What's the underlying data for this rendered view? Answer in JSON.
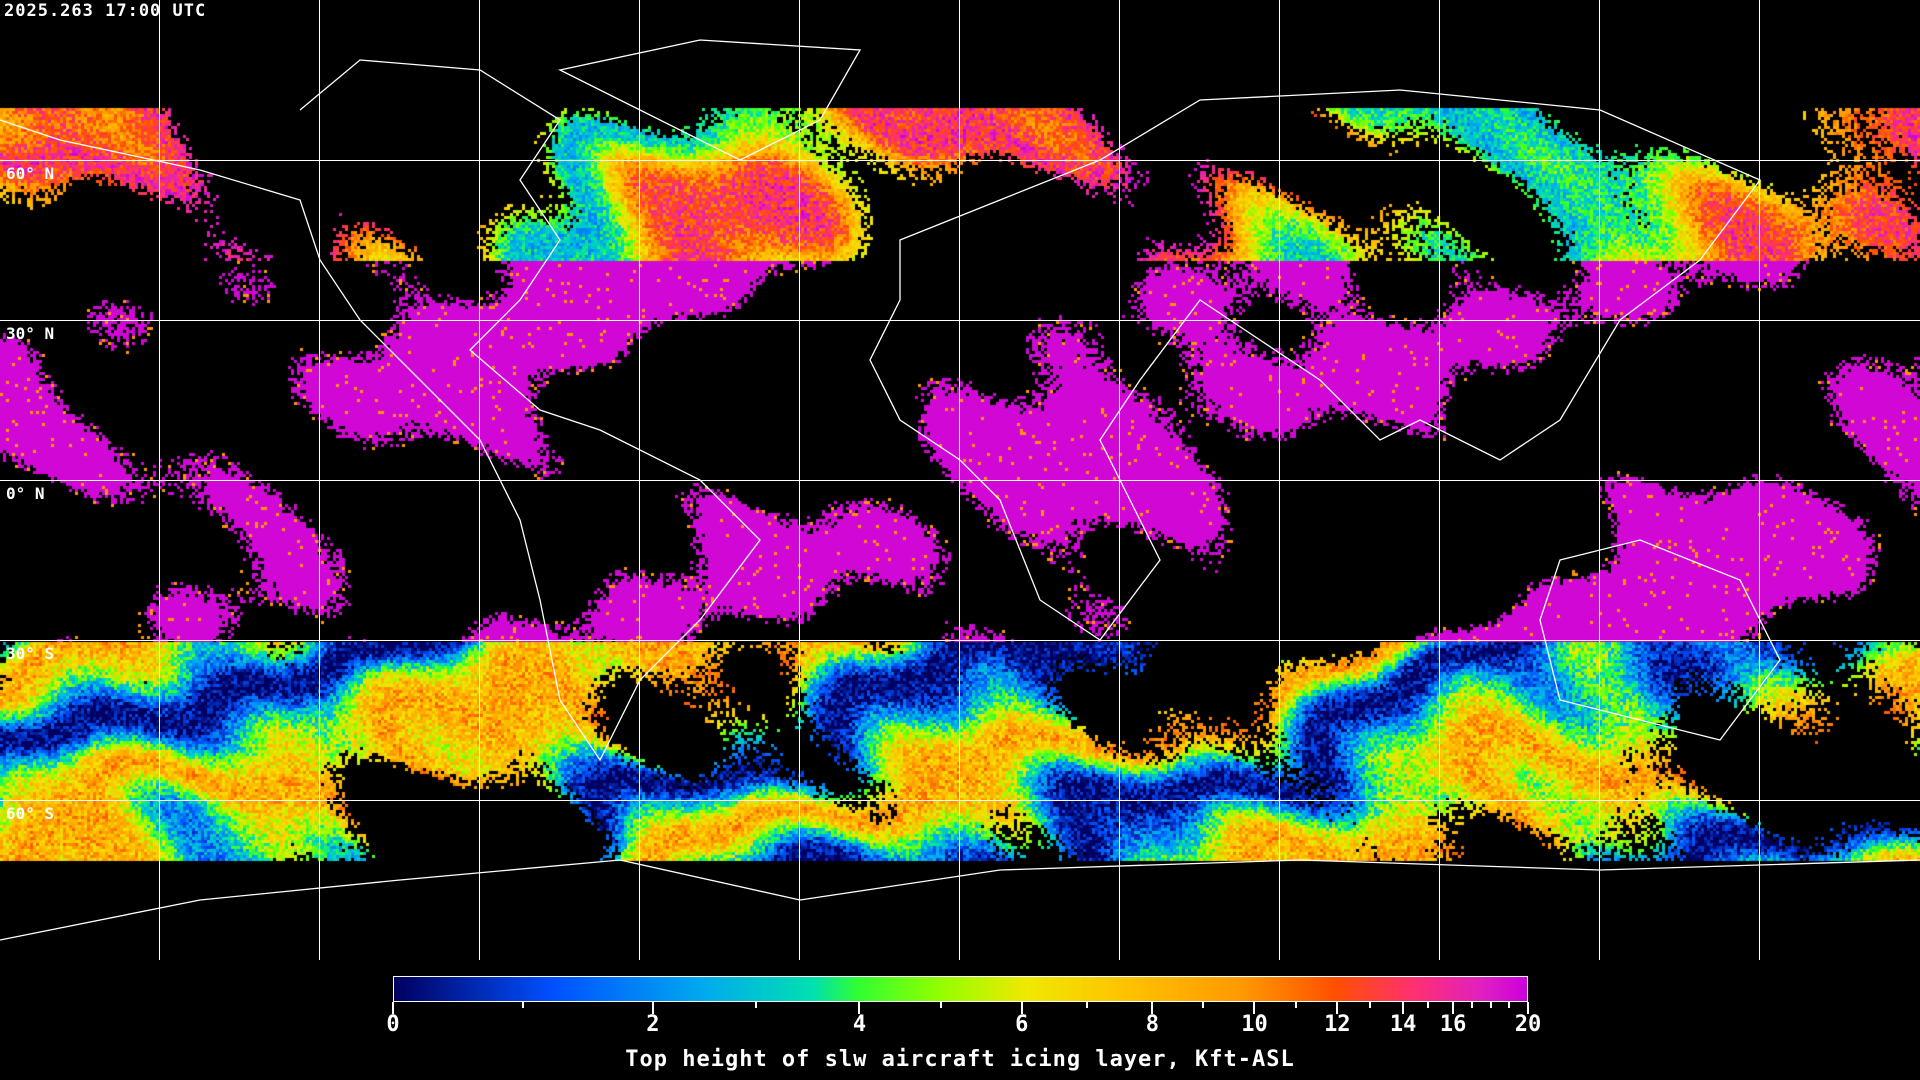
{
  "timestamp": "2025.263 17:00 UTC",
  "map": {
    "projection": "equirectangular",
    "latitude_labels": [
      "60° N",
      "30° N",
      "0° N",
      "30° S",
      "60° S"
    ],
    "gridline_color": "#ffffff",
    "coastline_color": "#ffffff",
    "background_color": "#000000"
  },
  "colorbar": {
    "title": "Top height of slw aircraft icing layer, Kft-ASL",
    "min": 0,
    "max": 20,
    "tick_labels": [
      "0",
      "2",
      "4",
      "6",
      "8",
      "10",
      "12",
      "14",
      "16",
      "20"
    ],
    "colors": [
      "#000060",
      "#0050ff",
      "#00a8f0",
      "#00e0b0",
      "#30ff30",
      "#90ff00",
      "#f0e800",
      "#ffc000",
      "#ff9800",
      "#ff5000",
      "#ff3070",
      "#e020c0",
      "#cc00dd"
    ]
  }
}
